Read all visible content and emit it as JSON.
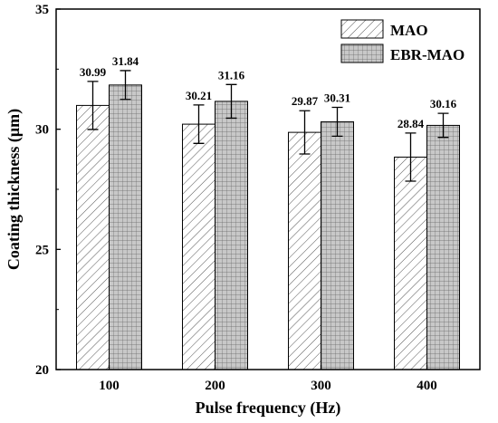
{
  "chart_data": {
    "type": "bar",
    "xlabel": "Pulse frequency (Hz)",
    "ylabel": "Coating thickness (μm)",
    "ylim": [
      20,
      35
    ],
    "yticks": [
      "20",
      "25",
      "30",
      "35"
    ],
    "categories": [
      "100",
      "200",
      "300",
      "400"
    ],
    "series": [
      {
        "name": "MAO",
        "pattern": "diagonal-hatch",
        "fill": "#ffffff",
        "values": [
          30.99,
          30.21,
          29.87,
          28.84
        ],
        "labels": [
          "30.99",
          "30.21",
          "29.87",
          "28.84"
        ],
        "errors": [
          1.0,
          0.8,
          0.9,
          1.0
        ]
      },
      {
        "name": "EBR-MAO",
        "pattern": "grid",
        "fill": "#c8c8c8",
        "values": [
          31.84,
          31.16,
          30.31,
          30.16
        ],
        "labels": [
          "31.84",
          "31.16",
          "30.31",
          "30.16"
        ],
        "errors": [
          0.6,
          0.7,
          0.6,
          0.5
        ]
      }
    ],
    "legend": "top-right",
    "grid": false
  }
}
